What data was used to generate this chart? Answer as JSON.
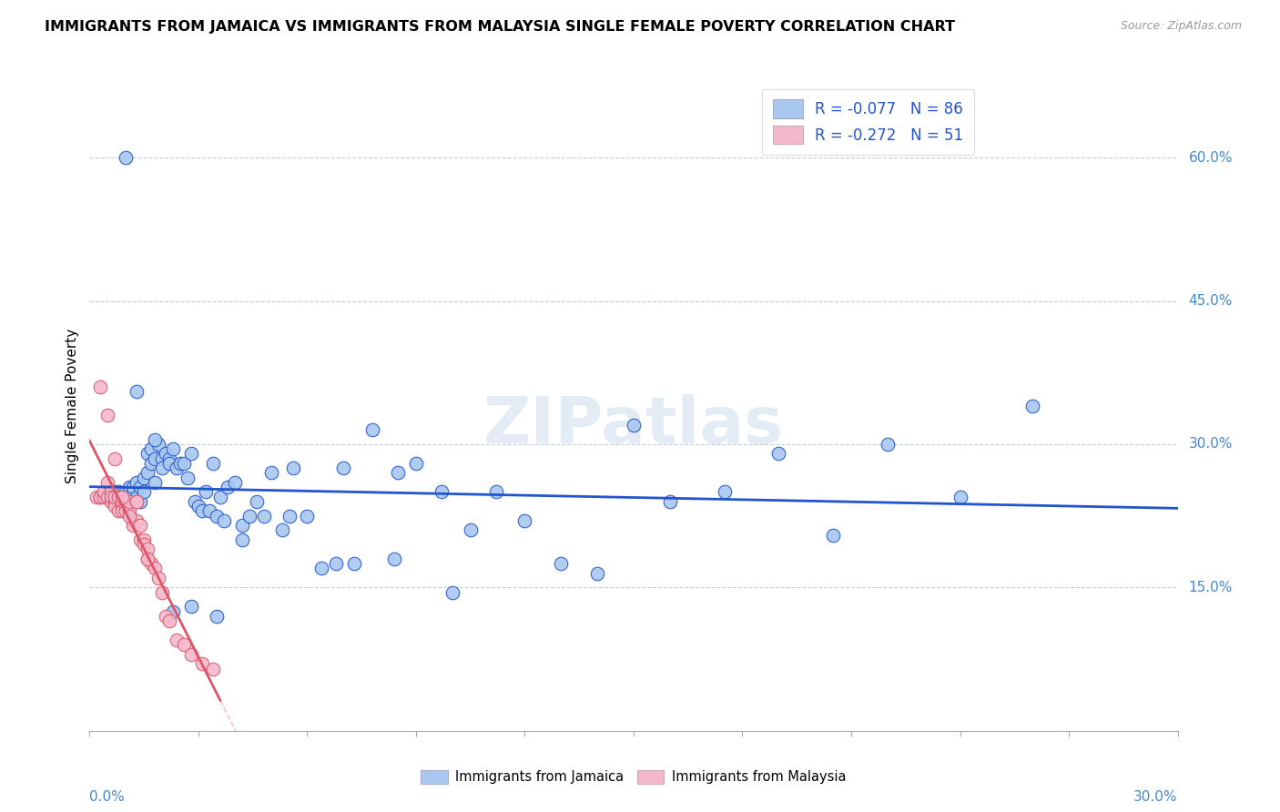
{
  "title": "IMMIGRANTS FROM JAMAICA VS IMMIGRANTS FROM MALAYSIA SINGLE FEMALE POVERTY CORRELATION CHART",
  "source": "Source: ZipAtlas.com",
  "ylabel": "Single Female Poverty",
  "ytick_labels": [
    "60.0%",
    "45.0%",
    "30.0%",
    "15.0%"
  ],
  "ytick_vals": [
    0.6,
    0.45,
    0.3,
    0.15
  ],
  "xtick_labels": [
    "0.0%",
    "30.0%"
  ],
  "xlim": [
    0.0,
    0.3
  ],
  "ylim": [
    0.0,
    0.68
  ],
  "legend_jamaica": "R = -0.077   N = 86",
  "legend_malaysia": "R = -0.272   N = 51",
  "jamaica_color": "#a8c8f0",
  "malaysia_color": "#f4b8cc",
  "trendline_jamaica_color": "#2255cc",
  "trendline_malaysia_color": "#dd5566",
  "watermark": "ZIPatlas",
  "jamaica_x": [
    0.005,
    0.006,
    0.007,
    0.008,
    0.008,
    0.009,
    0.01,
    0.01,
    0.011,
    0.011,
    0.012,
    0.012,
    0.013,
    0.013,
    0.014,
    0.014,
    0.015,
    0.015,
    0.016,
    0.016,
    0.017,
    0.017,
    0.018,
    0.018,
    0.019,
    0.02,
    0.02,
    0.021,
    0.022,
    0.022,
    0.023,
    0.024,
    0.025,
    0.026,
    0.027,
    0.028,
    0.029,
    0.03,
    0.031,
    0.032,
    0.033,
    0.034,
    0.035,
    0.036,
    0.037,
    0.038,
    0.04,
    0.042,
    0.044,
    0.046,
    0.048,
    0.05,
    0.053,
    0.056,
    0.06,
    0.064,
    0.068,
    0.073,
    0.078,
    0.084,
    0.09,
    0.097,
    0.105,
    0.112,
    0.12,
    0.13,
    0.14,
    0.15,
    0.16,
    0.175,
    0.19,
    0.205,
    0.22,
    0.24,
    0.26,
    0.01,
    0.013,
    0.018,
    0.023,
    0.028,
    0.035,
    0.042,
    0.055,
    0.07,
    0.085,
    0.1
  ],
  "jamaica_y": [
    0.245,
    0.245,
    0.25,
    0.24,
    0.25,
    0.24,
    0.245,
    0.25,
    0.25,
    0.255,
    0.25,
    0.255,
    0.245,
    0.26,
    0.24,
    0.255,
    0.25,
    0.265,
    0.29,
    0.27,
    0.28,
    0.295,
    0.26,
    0.285,
    0.3,
    0.285,
    0.275,
    0.29,
    0.285,
    0.28,
    0.295,
    0.275,
    0.28,
    0.28,
    0.265,
    0.29,
    0.24,
    0.235,
    0.23,
    0.25,
    0.23,
    0.28,
    0.225,
    0.245,
    0.22,
    0.255,
    0.26,
    0.215,
    0.225,
    0.24,
    0.225,
    0.27,
    0.21,
    0.275,
    0.225,
    0.17,
    0.175,
    0.175,
    0.315,
    0.18,
    0.28,
    0.25,
    0.21,
    0.25,
    0.22,
    0.175,
    0.165,
    0.32,
    0.24,
    0.25,
    0.29,
    0.205,
    0.3,
    0.245,
    0.34,
    0.6,
    0.355,
    0.305,
    0.125,
    0.13,
    0.12,
    0.2,
    0.225,
    0.275,
    0.27,
    0.145
  ],
  "malaysia_x": [
    0.002,
    0.003,
    0.003,
    0.004,
    0.004,
    0.005,
    0.005,
    0.006,
    0.006,
    0.006,
    0.007,
    0.007,
    0.007,
    0.008,
    0.008,
    0.009,
    0.009,
    0.009,
    0.01,
    0.01,
    0.011,
    0.011,
    0.011,
    0.012,
    0.012,
    0.013,
    0.013,
    0.014,
    0.014,
    0.015,
    0.015,
    0.016,
    0.016,
    0.017,
    0.018,
    0.019,
    0.02,
    0.021,
    0.022,
    0.024,
    0.026,
    0.028,
    0.031,
    0.034,
    0.003,
    0.005,
    0.007,
    0.009,
    0.011,
    0.013,
    0.016
  ],
  "malaysia_y": [
    0.245,
    0.245,
    0.245,
    0.245,
    0.25,
    0.245,
    0.26,
    0.24,
    0.25,
    0.245,
    0.24,
    0.235,
    0.245,
    0.23,
    0.245,
    0.235,
    0.24,
    0.23,
    0.235,
    0.23,
    0.235,
    0.23,
    0.24,
    0.22,
    0.215,
    0.22,
    0.24,
    0.2,
    0.215,
    0.2,
    0.195,
    0.18,
    0.19,
    0.175,
    0.17,
    0.16,
    0.145,
    0.12,
    0.115,
    0.095,
    0.09,
    0.08,
    0.07,
    0.065,
    0.36,
    0.33,
    0.285,
    0.245,
    0.225,
    0.24,
    0.18
  ]
}
